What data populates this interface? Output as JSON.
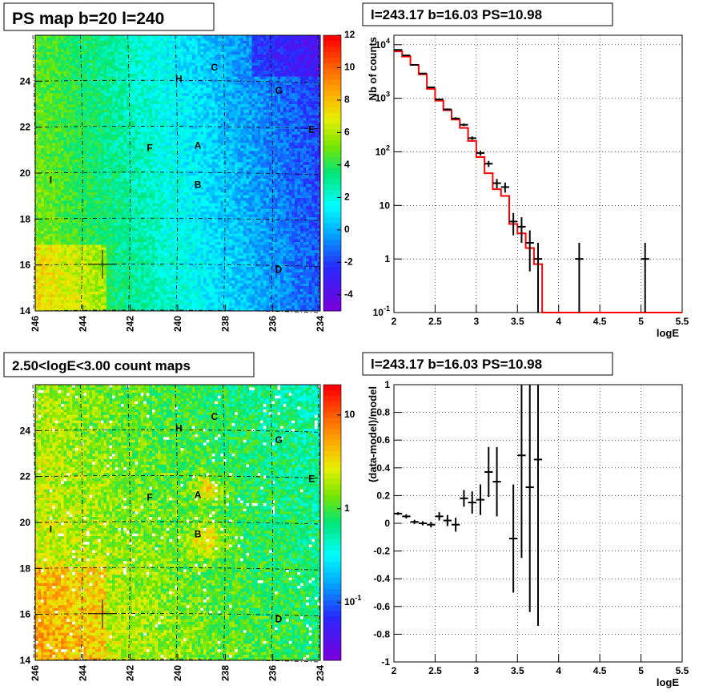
{
  "chart_data": [
    {
      "type": "heatmap",
      "title": "PS map b=20 l=240",
      "x_axis": {
        "range": [
          246,
          234
        ],
        "reversed": true,
        "ticks": [
          "246",
          "244",
          "242",
          "240",
          "238",
          "236",
          "234"
        ]
      },
      "y_axis": {
        "range": [
          14,
          26
        ],
        "ticks": [
          "14",
          "16",
          "18",
          "20",
          "22",
          "24"
        ]
      },
      "colorbar": {
        "scale": "linear",
        "range": [
          -5,
          12
        ],
        "ticks": [
          "-4",
          "-2",
          "0",
          "2",
          "4",
          "6",
          "8",
          "10",
          "12"
        ]
      },
      "source_labels": [
        "A",
        "B",
        "C",
        "D",
        "E",
        "F",
        "G",
        "H",
        "I"
      ],
      "marker": {
        "l": 243.17,
        "b": 16.03
      },
      "grid": true
    },
    {
      "type": "line",
      "title": "l=243.17 b=16.03 PS=10.98",
      "xlabel": "logE",
      "ylabel": "Nb of counts",
      "y_scale": "log",
      "xlim": [
        2,
        5.5
      ],
      "ylim": [
        0.1,
        15000
      ],
      "x_ticks": [
        "2",
        "2.5",
        "3",
        "3.5",
        "4",
        "4.5",
        "5",
        "5.5"
      ],
      "y_ticks": [
        "10^{-1}",
        "1",
        "10",
        "10^{2}",
        "10^{3}",
        "10^{4}"
      ],
      "grid": true,
      "series": [
        {
          "kind": "data_points",
          "color": "#000000",
          "x": [
            2.05,
            2.15,
            2.25,
            2.35,
            2.45,
            2.55,
            2.65,
            2.75,
            2.85,
            2.95,
            3.05,
            3.15,
            3.25,
            3.35,
            3.45,
            3.55,
            3.65,
            3.75,
            4.25,
            5.05
          ],
          "y": [
            8000,
            6300,
            4200,
            2900,
            1600,
            950,
            620,
            420,
            320,
            180,
            95,
            60,
            26,
            22,
            5,
            4,
            2,
            1,
            1,
            1
          ]
        },
        {
          "kind": "model_histogram",
          "color": "#ff0000",
          "x": [
            2.05,
            2.15,
            2.25,
            2.35,
            2.45,
            2.55,
            2.65,
            2.75,
            2.85,
            2.95,
            3.05,
            3.15,
            3.25,
            3.35,
            3.45,
            3.55,
            3.65,
            3.75
          ],
          "y": [
            7500,
            6000,
            4200,
            2800,
            1500,
            900,
            600,
            400,
            280,
            160,
            80,
            40,
            20,
            15,
            4.5,
            3.0,
            1.6,
            0.8
          ]
        }
      ]
    },
    {
      "type": "heatmap",
      "title": "2.50<logE<3.00 count maps",
      "x_axis": {
        "range": [
          246,
          234
        ],
        "reversed": true,
        "ticks": [
          "246",
          "244",
          "242",
          "240",
          "238",
          "236",
          "234"
        ]
      },
      "y_axis": {
        "range": [
          14,
          26
        ],
        "ticks": [
          "14",
          "16",
          "18",
          "20",
          "22",
          "24"
        ]
      },
      "colorbar": {
        "scale": "log",
        "ticks": [
          "10^{-1}",
          "1",
          "10"
        ]
      },
      "source_labels": [
        "A",
        "B",
        "C",
        "D",
        "E",
        "F",
        "G",
        "H",
        "I"
      ],
      "marker": {
        "l": 243.17,
        "b": 16.03
      },
      "grid": true
    },
    {
      "type": "scatter",
      "title": "l=243.17 b=16.03 PS=10.98",
      "xlabel": "logE",
      "ylabel": "(data-model)/model",
      "xlim": [
        2,
        5.5
      ],
      "ylim": [
        -1,
        1
      ],
      "x_ticks": [
        "2",
        "2.5",
        "3",
        "3.5",
        "4",
        "4.5",
        "5",
        "5.5"
      ],
      "y_ticks": [
        "-1",
        "-0.8",
        "-0.6",
        "-0.4",
        "-0.2",
        "0",
        "0.2",
        "0.4",
        "0.6",
        "0.8",
        "1"
      ],
      "grid": true,
      "points": {
        "x": [
          2.05,
          2.15,
          2.25,
          2.35,
          2.45,
          2.55,
          2.65,
          2.75,
          2.85,
          2.95,
          3.05,
          3.15,
          3.25,
          3.45,
          3.55,
          3.65,
          3.75
        ],
        "y": [
          0.07,
          0.05,
          0.01,
          0.0,
          -0.01,
          0.05,
          0.02,
          -0.01,
          0.18,
          0.15,
          0.17,
          0.37,
          0.3,
          -0.11,
          0.49,
          0.26,
          0.46
        ],
        "err": [
          0.01,
          0.015,
          0.015,
          0.015,
          0.02,
          0.03,
          0.04,
          0.05,
          0.06,
          0.08,
          0.11,
          0.18,
          0.25,
          0.39,
          0.74,
          0.9,
          1.2
        ]
      }
    }
  ]
}
